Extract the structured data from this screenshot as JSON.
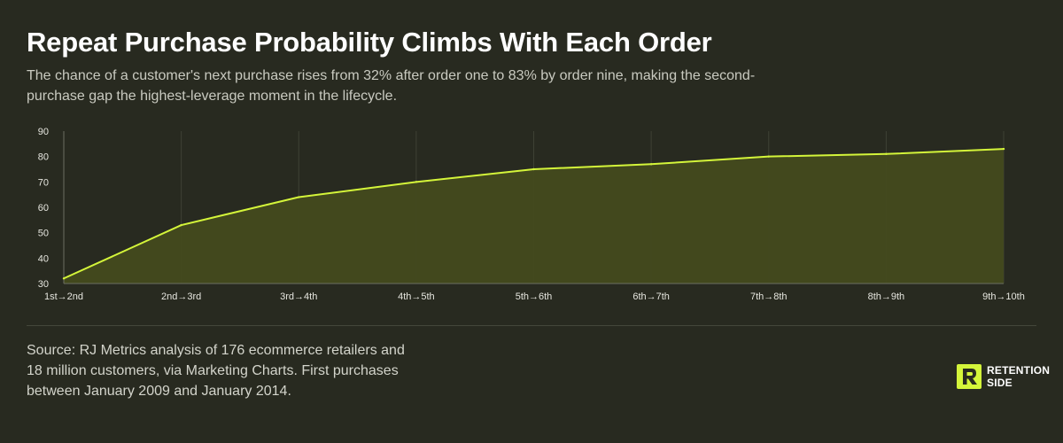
{
  "header": {
    "title": "Repeat Purchase Probability Climbs With Each Order",
    "subtitle": "The chance of a customer's next purchase rises from 32% after order one to 83% by order nine, making the second-purchase gap the highest-leverage moment in the lifecycle."
  },
  "footer": {
    "source": "Source: RJ Metrics analysis of 176 ecommerce retailers and 18 million customers, via Marketing Charts. First purchases between January 2009 and January 2014.",
    "logo_line1": "RETENTION",
    "logo_line2": "SIDE"
  },
  "colors": {
    "background": "#282a20",
    "line": "#d4f53a",
    "area": "#434a1e",
    "grid": "#3e4134"
  },
  "chart_data": {
    "type": "area",
    "categories": [
      "1st→2nd",
      "2nd→3rd",
      "3rd→4th",
      "4th→5th",
      "5th→6th",
      "6th→7th",
      "7th→8th",
      "8th→9th",
      "9th→10th"
    ],
    "values": [
      32,
      53,
      64,
      70,
      75,
      77,
      80,
      81,
      83
    ],
    "ylim": [
      30,
      90
    ],
    "yticks": [
      30,
      40,
      50,
      60,
      70,
      80,
      90
    ],
    "grid": "vertical",
    "legend": "none"
  }
}
